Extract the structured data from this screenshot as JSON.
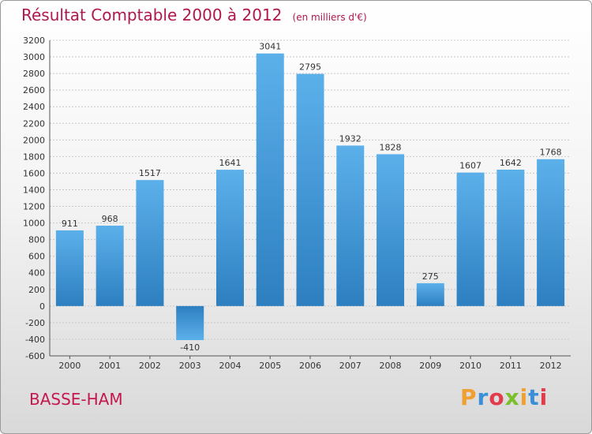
{
  "chart_data": {
    "type": "bar",
    "title": "Résultat Comptable 2000 à 2012",
    "subtitle": "(en milliers d'€)",
    "categories": [
      "2000",
      "2001",
      "2002",
      "2003",
      "2004",
      "2005",
      "2006",
      "2007",
      "2008",
      "2009",
      "2010",
      "2011",
      "2012"
    ],
    "values": [
      911,
      968,
      1517,
      -410,
      1641,
      3041,
      2795,
      1932,
      1828,
      275,
      1607,
      1642,
      1768
    ],
    "value_labels": [
      "911",
      "968",
      "1517",
      "-410",
      "1641",
      "3041",
      "2795",
      "1932",
      "1828",
      "275",
      "1607",
      "1642",
      "1768"
    ],
    "y_ticks": [
      "3200",
      "3000",
      "2800",
      "2600",
      "2400",
      "2200",
      "2000",
      "1800",
      "1600",
      "1400",
      "1200",
      "1000",
      "800",
      "600",
      "400",
      "200",
      "0",
      "-200",
      "-400",
      "-600"
    ],
    "ylim": [
      -600,
      3200
    ],
    "ytick_step": 200,
    "grid": true,
    "xlabel": "",
    "ylabel": "",
    "bar_color": "#4a9fdc",
    "bar_color_dark": "#2d7fc0",
    "title_color": "#b0174f"
  },
  "commune": "BASSE-HAM",
  "logo": {
    "letters": [
      "P",
      "r",
      "o",
      "x",
      "i",
      "t",
      "i"
    ],
    "colors": [
      "#f0a030",
      "#3a8fd8",
      "#e23b4a",
      "#7bbf2a",
      "#f0a030",
      "#3a8fd8",
      "#e23b4a"
    ]
  }
}
